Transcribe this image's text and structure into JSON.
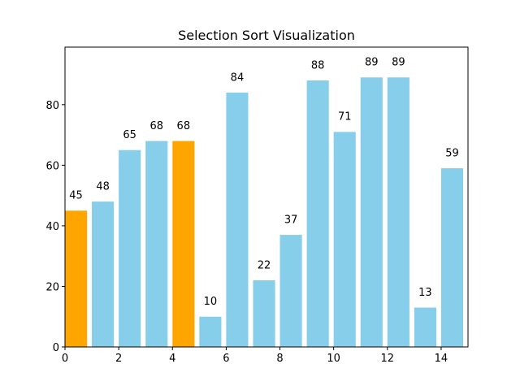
{
  "chart_data": {
    "type": "bar",
    "title": "Selection Sort Visualization",
    "xlabel": "",
    "ylabel": "",
    "x": [
      0,
      1,
      2,
      3,
      4,
      5,
      6,
      7,
      8,
      9,
      10,
      11,
      12,
      13,
      14
    ],
    "values": [
      45,
      48,
      65,
      68,
      68,
      10,
      84,
      22,
      37,
      88,
      71,
      89,
      89,
      13,
      59
    ],
    "highlighted_indices": [
      0,
      4
    ],
    "bar_color": "#87CEEB",
    "highlight_color": "#FFA500",
    "xlim": [
      0,
      15
    ],
    "ylim": [
      0,
      99
    ],
    "xticks": [
      0,
      2,
      4,
      6,
      8,
      10,
      12,
      14
    ],
    "yticks": [
      0,
      20,
      40,
      60,
      80
    ],
    "grid": false
  }
}
